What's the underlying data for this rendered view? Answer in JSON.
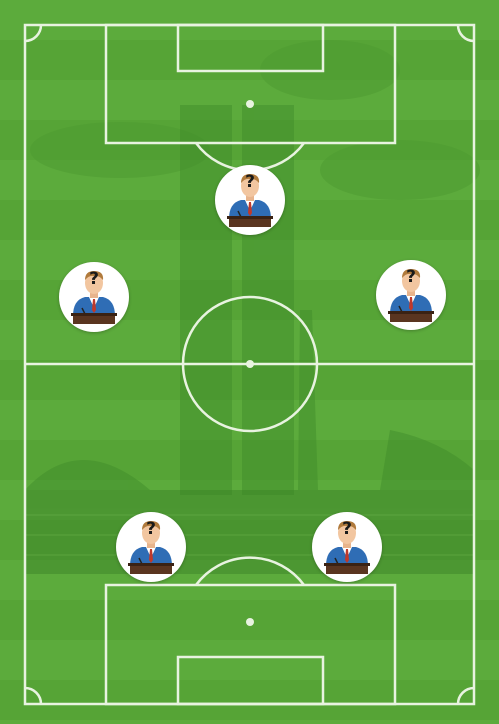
{
  "formation": {
    "name": "",
    "slots": [
      {
        "id": "slot-top-center",
        "label": "?",
        "icon": "politician-silhouette-icon"
      },
      {
        "id": "slot-mid-left",
        "label": "?",
        "icon": "politician-silhouette-icon"
      },
      {
        "id": "slot-mid-right",
        "label": "?",
        "icon": "politician-silhouette-icon"
      },
      {
        "id": "slot-bottom-left",
        "label": "?",
        "icon": "politician-silhouette-icon"
      },
      {
        "id": "slot-bottom-right",
        "label": "?",
        "icon": "politician-silhouette-icon"
      }
    ]
  },
  "colors": {
    "grass_light": "#5cab3c",
    "grass_dark": "#56a436",
    "lines": "#e8f3e0",
    "suit": "#2f6db5",
    "tie": "#c0392b",
    "podium": "#5a3520",
    "hair": "#b07a3c",
    "skin": "#f2c6a0"
  }
}
